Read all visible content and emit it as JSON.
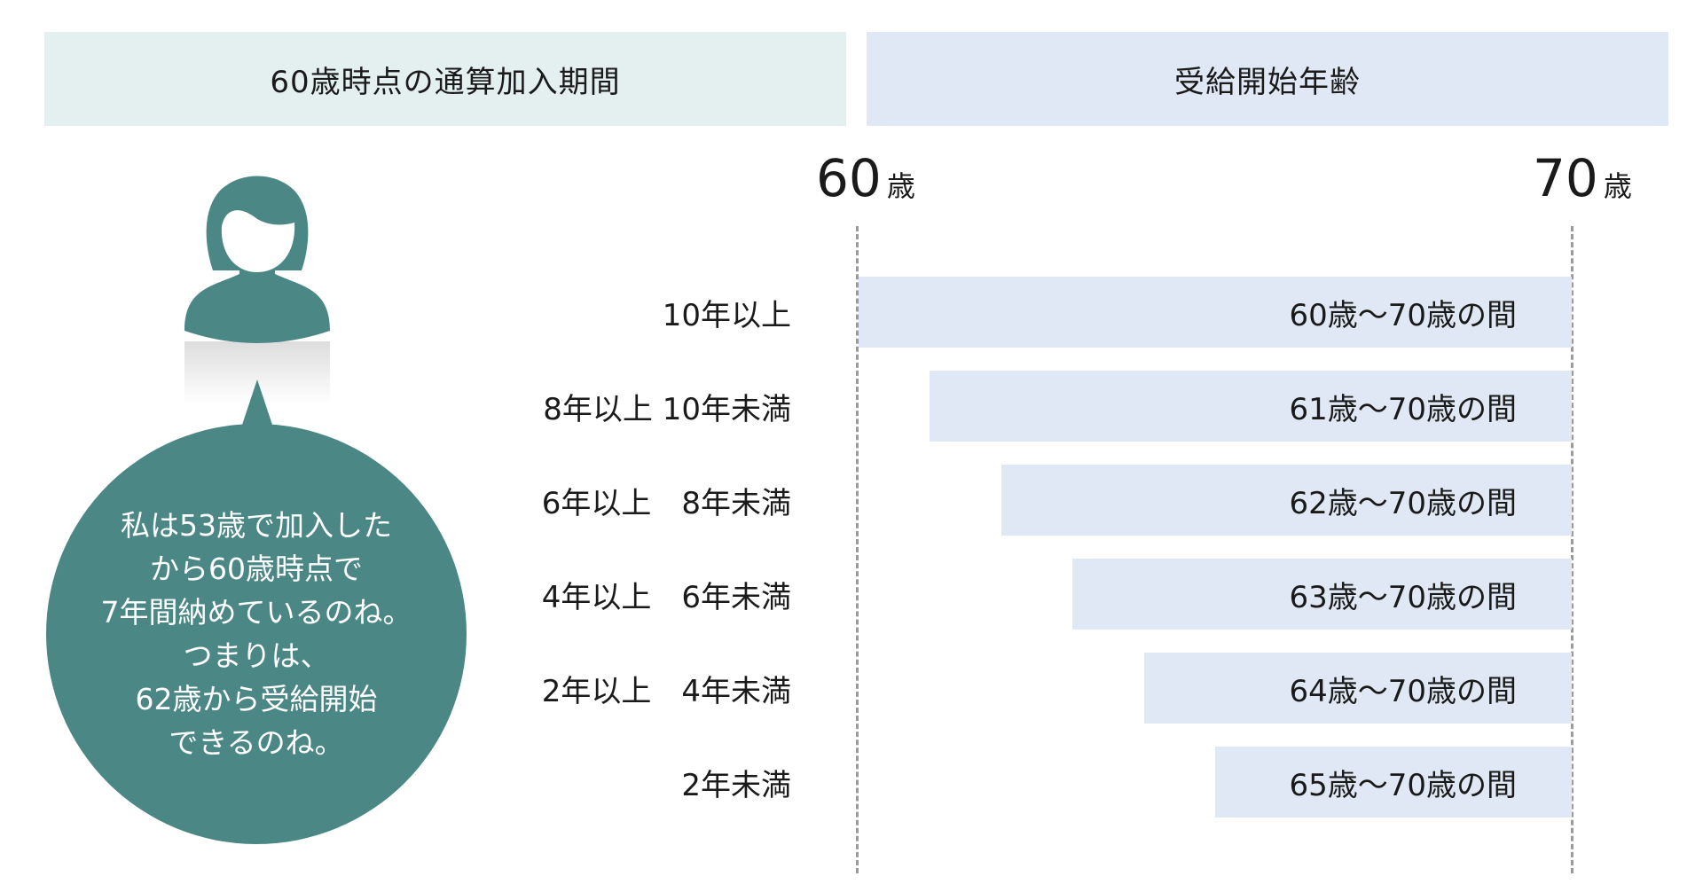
{
  "header": {
    "left_title": "60歳時点の通算加入期間",
    "right_title": "受給開始年齢"
  },
  "axis": {
    "start_num": "60",
    "start_unit": "歳",
    "end_num": "70",
    "end_unit": "歳"
  },
  "rows": [
    {
      "period": "10年以上",
      "range": "60歳〜70歳の間",
      "start_age": 60,
      "end_age": 70
    },
    {
      "period": "8年以上 10年未満",
      "range": "61歳〜70歳の間",
      "start_age": 61,
      "end_age": 70
    },
    {
      "period": "6年以上　8年未満",
      "range": "62歳〜70歳の間",
      "start_age": 62,
      "end_age": 70
    },
    {
      "period": "4年以上　6年未満",
      "range": "63歳〜70歳の間",
      "start_age": 63,
      "end_age": 70
    },
    {
      "period": "2年以上　4年未満",
      "range": "64歳〜70歳の間",
      "start_age": 64,
      "end_age": 70
    },
    {
      "period": "2年未満",
      "range": "65歳〜70歳の間",
      "start_age": 65,
      "end_age": 70
    }
  ],
  "speech": {
    "lines": [
      "私は53歳で加入した",
      "から60歳時点で",
      "7年間納めているのね。",
      "つまりは、",
      "62歳から受給開始",
      "できるのね。"
    ]
  },
  "colors": {
    "header_left_bg": "#e4efef",
    "header_right_bg": "#dfe8f4",
    "bar_fill": "#dfe8f4",
    "accent_teal": "#4b8785"
  },
  "icons": {
    "avatar": "woman-avatar-icon"
  }
}
